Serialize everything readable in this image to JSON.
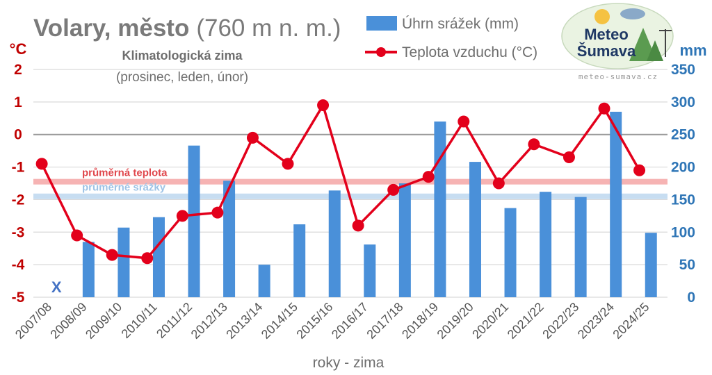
{
  "title": {
    "place": "Volary, město",
    "altitude": "(760 m n. m.)"
  },
  "subtitle": {
    "line1": "Klimatologická zima",
    "line2": "(prosinec, leden, únor)"
  },
  "legend": {
    "precip": "Úhrn srážek (mm)",
    "temp": "Teplota vzduchu (°C)"
  },
  "logo": {
    "line1": "Meteo",
    "line2": "Šumava",
    "website": "meteo-sumava.cz"
  },
  "colors": {
    "bar": "#4a90d9",
    "line": "#e3001b",
    "avg_temp": "#f4a6a6",
    "avg_precip": "#bdd7ee"
  },
  "chart_data": {
    "type": "bar+line",
    "categories": [
      "2007/08",
      "2008/09",
      "2009/10",
      "2010/11",
      "2011/12",
      "2012/13",
      "2013/14",
      "2014/15",
      "2015/16",
      "2016/17",
      "2017/18",
      "2018/19",
      "2019/20",
      "2020/21",
      "2021/22",
      "2022/23",
      "2023/24",
      "2024/25"
    ],
    "series": [
      {
        "name": "Úhrn srážek (mm)",
        "type": "bar",
        "axis": "right",
        "values": [
          null,
          85,
          107,
          123,
          233,
          179,
          50,
          112,
          164,
          81,
          175,
          270,
          208,
          137,
          162,
          154,
          285,
          99
        ]
      },
      {
        "name": "Teplota vzduchu (°C)",
        "type": "line",
        "axis": "left",
        "values": [
          -0.9,
          -3.1,
          -3.7,
          -3.8,
          -2.5,
          -2.4,
          -0.1,
          -0.9,
          0.9,
          -2.8,
          -1.7,
          -1.3,
          0.4,
          -1.5,
          -0.3,
          -0.7,
          0.8,
          -1.1
        ]
      }
    ],
    "missing_marker": "X",
    "xlabel": "roky - zima",
    "ylabel_left": "°C",
    "ylabel_right": "mm",
    "ylim_left": [
      -5,
      2
    ],
    "ylim_right": [
      0,
      350
    ],
    "yticks_left": [
      "2",
      "1",
      "0",
      "-1",
      "-2",
      "-3",
      "-4",
      "-5"
    ],
    "yticks_right": [
      "350",
      "300",
      "250",
      "200",
      "150",
      "100",
      "50",
      "0"
    ],
    "average_lines": [
      {
        "label": "průměrná teplota",
        "value": -1.45,
        "axis": "left"
      },
      {
        "label": "průměrné srážky",
        "value": 155,
        "axis": "right"
      }
    ],
    "grid": "horizontal"
  }
}
